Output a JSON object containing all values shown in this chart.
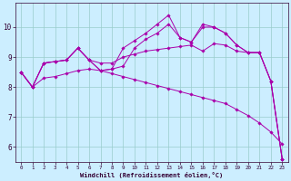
{
  "xlabel": "Windchill (Refroidissement éolien,°C)",
  "background_color": "#cceeff",
  "grid_color": "#99cccc",
  "line_color": "#aa00aa",
  "xlim": [
    -0.5,
    23.5
  ],
  "ylim": [
    5.5,
    10.8
  ],
  "xticks": [
    0,
    1,
    2,
    3,
    4,
    5,
    6,
    7,
    8,
    9,
    10,
    11,
    12,
    13,
    14,
    15,
    16,
    17,
    18,
    19,
    20,
    21,
    22,
    23
  ],
  "yticks": [
    6,
    7,
    8,
    9,
    10
  ],
  "curve1": [
    8.5,
    8.0,
    8.8,
    8.85,
    8.9,
    9.3,
    8.9,
    8.8,
    8.8,
    9.0,
    9.1,
    9.2,
    9.25,
    9.3,
    9.35,
    9.4,
    9.2,
    9.45,
    9.4,
    9.2,
    9.15,
    9.15,
    8.2,
    5.6
  ],
  "curve2": [
    8.5,
    8.0,
    8.8,
    8.85,
    8.9,
    9.3,
    8.9,
    8.55,
    8.6,
    8.7,
    9.3,
    9.6,
    9.8,
    10.1,
    9.65,
    9.5,
    10.0,
    10.0,
    9.8,
    9.4,
    9.15,
    9.15,
    8.2,
    5.6
  ],
  "curve3": [
    8.5,
    8.0,
    8.8,
    8.85,
    8.9,
    9.3,
    8.9,
    8.55,
    8.6,
    9.3,
    9.55,
    9.8,
    10.1,
    10.4,
    9.65,
    9.5,
    10.1,
    10.0,
    9.8,
    9.4,
    9.15,
    9.15,
    8.2,
    5.6
  ],
  "curve4": [
    8.5,
    8.0,
    8.3,
    8.35,
    8.45,
    8.55,
    8.6,
    8.55,
    8.45,
    8.35,
    8.25,
    8.15,
    8.05,
    7.95,
    7.85,
    7.75,
    7.65,
    7.55,
    7.45,
    7.25,
    7.05,
    6.8,
    6.5,
    6.1
  ]
}
